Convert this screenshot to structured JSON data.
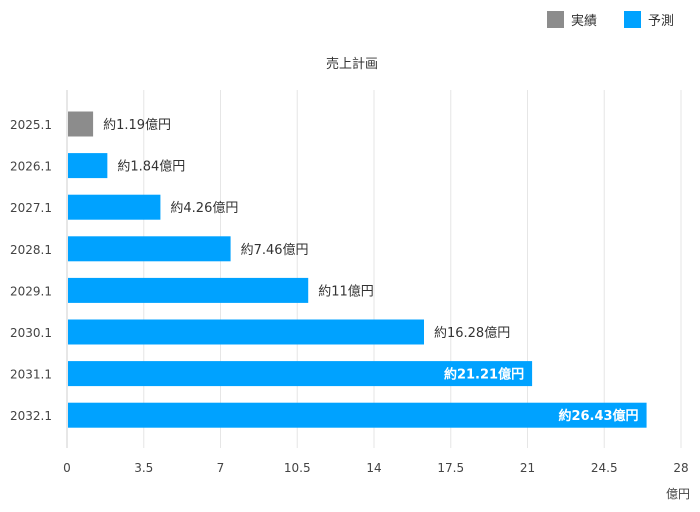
{
  "chart_data": {
    "type": "bar",
    "orientation": "horizontal",
    "title": "売上計画",
    "categories": [
      "2025.1",
      "2026.1",
      "2027.1",
      "2028.1",
      "2029.1",
      "2030.1",
      "2031.1",
      "2032.1"
    ],
    "values": [
      1.19,
      1.84,
      4.26,
      7.46,
      11,
      16.28,
      21.21,
      26.43
    ],
    "value_labels": [
      "約1.19億円",
      "約1.84億円",
      "約4.26億円",
      "約7.46億円",
      "約11億円",
      "約16.28億円",
      "約21.21億円",
      "約26.43億円"
    ],
    "series_of_bar": [
      "実績",
      "予測",
      "予測",
      "予測",
      "予測",
      "予測",
      "予測",
      "予測"
    ],
    "label_inside": [
      false,
      false,
      false,
      false,
      false,
      false,
      true,
      true
    ],
    "xlabel": "億円",
    "xlim": [
      0,
      28
    ],
    "xticks": [
      0,
      3.5,
      7,
      10.5,
      14,
      17.5,
      21,
      24.5,
      28
    ],
    "xtick_labels": [
      "0",
      "3.5",
      "7",
      "10.5",
      "14",
      "17.5",
      "21",
      "24.5",
      "28"
    ],
    "grid": true,
    "legend": {
      "position": "top-right",
      "items": [
        {
          "name": "実績",
          "color": "#8c8c8c"
        },
        {
          "name": "予測",
          "color": "#00a2ff"
        }
      ]
    }
  }
}
